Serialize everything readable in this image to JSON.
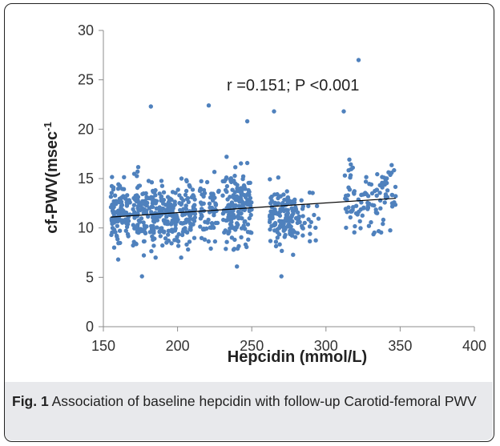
{
  "figure": {
    "label": "Fig. 1",
    "caption": "Association of baseline hepcidin with follow-up Carotid-femoral PWV"
  },
  "chart_data": {
    "type": "scatter",
    "xlabel": "Hepcidin (mmol/L)",
    "ylabel": "cf-PWV(msec",
    "ylabel_superscript": "-1",
    "annotation": "r =0.151; P <0.001",
    "xlim": [
      150,
      400
    ],
    "ylim": [
      0,
      30
    ],
    "xticks": [
      150,
      200,
      250,
      300,
      350,
      400
    ],
    "yticks": [
      0,
      5,
      10,
      15,
      20,
      25,
      30
    ],
    "grid": false,
    "marker_color": "#4f81bd",
    "trendline": {
      "x": [
        155,
        347
      ],
      "y": [
        11.1,
        13.0
      ],
      "color": "#000000"
    },
    "clusters": [
      {
        "x_range": [
          155,
          168
        ],
        "y_center": 11.2,
        "y_sd": 2.4,
        "count": 110
      },
      {
        "x_range": [
          170,
          190
        ],
        "y_center": 11.3,
        "y_sd": 2.8,
        "count": 150
      },
      {
        "x_range": [
          190,
          212
        ],
        "y_center": 11.0,
        "y_sd": 2.5,
        "count": 150
      },
      {
        "x_range": [
          215,
          228
        ],
        "y_center": 11.8,
        "y_sd": 2.8,
        "count": 60
      },
      {
        "x_range": [
          230,
          250
        ],
        "y_center": 12.0,
        "y_sd": 3.0,
        "count": 170
      },
      {
        "x_range": [
          262,
          280
        ],
        "y_center": 11.2,
        "y_sd": 2.4,
        "count": 130
      },
      {
        "x_range": [
          280,
          295
        ],
        "y_center": 11.0,
        "y_sd": 2.0,
        "count": 30
      },
      {
        "x_range": [
          312,
          347
        ],
        "y_center": 13.0,
        "y_sd": 2.8,
        "count": 110
      }
    ],
    "notable_points": [
      {
        "x": 322,
        "y": 27.0
      },
      {
        "x": 221,
        "y": 22.4
      },
      {
        "x": 182,
        "y": 22.3
      },
      {
        "x": 312,
        "y": 21.8
      },
      {
        "x": 265,
        "y": 21.8
      },
      {
        "x": 247,
        "y": 20.8
      },
      {
        "x": 176,
        "y": 5.1
      },
      {
        "x": 270,
        "y": 5.1
      },
      {
        "x": 240,
        "y": 6.1
      },
      {
        "x": 160,
        "y": 6.8
      }
    ]
  }
}
